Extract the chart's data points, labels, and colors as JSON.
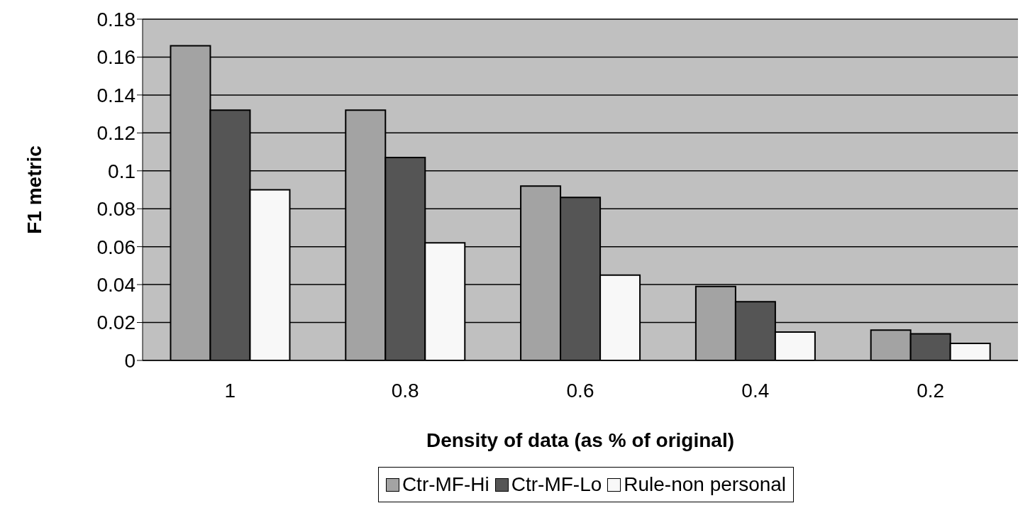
{
  "chart_data": {
    "type": "bar",
    "xlabel": "Density of data (as % of original)",
    "ylabel": "F1 metric",
    "categories": [
      "1",
      "0.8",
      "0.6",
      "0.4",
      "0.2"
    ],
    "series": [
      {
        "name": "Ctr-MF-Hi",
        "color": "#a3a3a3",
        "values": [
          0.166,
          0.132,
          0.092,
          0.039,
          0.016
        ]
      },
      {
        "name": "Ctr-MF-Lo",
        "color": "#555555",
        "values": [
          0.132,
          0.107,
          0.086,
          0.031,
          0.014
        ]
      },
      {
        "name": "Rule-non personal",
        "color": "#f8f8f8",
        "values": [
          0.09,
          0.062,
          0.045,
          0.015,
          0.009
        ]
      }
    ],
    "ylim": [
      0,
      0.18
    ],
    "yticks": [
      0,
      0.02,
      0.04,
      0.06,
      0.08,
      0.1,
      0.12,
      0.14,
      0.16,
      0.18
    ],
    "grid": "y",
    "legend": "bottom"
  }
}
